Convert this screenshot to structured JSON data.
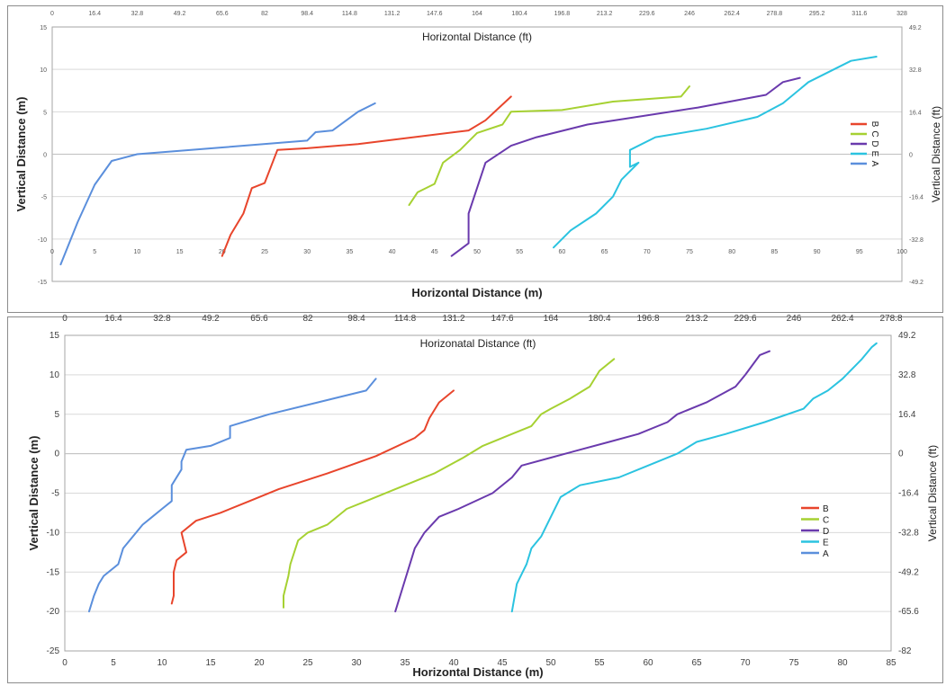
{
  "colors": {
    "B": "#e8452c",
    "C": "#a6d132",
    "D": "#6a3aad",
    "E": "#2bc3e0",
    "A": "#5b8fdc"
  },
  "chart_data": [
    {
      "type": "line",
      "title_top": "Horizontal Distance (ft)",
      "xlabel": "Horizontal Distance (m)",
      "ylabel_left": "Vertical Distance (m)",
      "ylabel_right": "Vertical Distance (ft)",
      "xlim": [
        0,
        100
      ],
      "ylim": [
        -15,
        15
      ],
      "x_ticks": [
        "0",
        "5",
        "10",
        "15",
        "20",
        "25",
        "30",
        "35",
        "40",
        "45",
        "50",
        "55",
        "60",
        "65",
        "70",
        "75",
        "80",
        "85",
        "90",
        "95",
        "100"
      ],
      "x_ticks_ft": [
        "0",
        "16.4",
        "32.8",
        "49.2",
        "65.6",
        "82",
        "98.4",
        "114.8",
        "131.2",
        "147.6",
        "164",
        "180.4",
        "196.8",
        "213.2",
        "229.6",
        "246",
        "262.4",
        "278.8",
        "295.2",
        "311.6",
        "328"
      ],
      "y_ticks": [
        "15",
        "10",
        "5",
        "0",
        "-5",
        "-10",
        "-15"
      ],
      "y_ticks_ft": [
        "49.2",
        "32.8",
        "16.4",
        "0",
        "-16.4",
        "-32.8",
        "-49.2"
      ],
      "legend_rotated": true,
      "series": [
        {
          "name": "B",
          "color_key": "B",
          "points": [
            [
              20,
              -12
            ],
            [
              21,
              -9.5
            ],
            [
              22.5,
              -7
            ],
            [
              23.5,
              -4
            ],
            [
              25,
              -3.4
            ],
            [
              26.5,
              0.5
            ],
            [
              30,
              0.7
            ],
            [
              36,
              1.2
            ],
            [
              49,
              2.8
            ],
            [
              51,
              4
            ],
            [
              54,
              6.8
            ]
          ]
        },
        {
          "name": "C",
          "color_key": "C",
          "points": [
            [
              42,
              -6
            ],
            [
              43,
              -4.5
            ],
            [
              45,
              -3.5
            ],
            [
              46,
              -1
            ],
            [
              48,
              0.5
            ],
            [
              50,
              2.5
            ],
            [
              53,
              3.5
            ],
            [
              54,
              5
            ],
            [
              60,
              5.2
            ],
            [
              66,
              6.2
            ],
            [
              74,
              6.8
            ],
            [
              75,
              8
            ]
          ]
        },
        {
          "name": "D",
          "color_key": "D",
          "points": [
            [
              47,
              -12
            ],
            [
              49,
              -10.5
            ],
            [
              49,
              -7
            ],
            [
              50,
              -4
            ],
            [
              51,
              -1
            ],
            [
              54,
              1
            ],
            [
              57,
              2
            ],
            [
              63,
              3.5
            ],
            [
              76,
              5.5
            ],
            [
              84,
              7
            ],
            [
              86,
              8.5
            ],
            [
              88,
              9
            ]
          ]
        },
        {
          "name": "E",
          "color_key": "E",
          "points": [
            [
              59,
              -11
            ],
            [
              61,
              -9
            ],
            [
              64,
              -7
            ],
            [
              66,
              -5
            ],
            [
              67,
              -3
            ],
            [
              69,
              -1
            ],
            [
              68,
              -1.5
            ],
            [
              68,
              0.5
            ],
            [
              71,
              2
            ],
            [
              77,
              3
            ],
            [
              83,
              4.4
            ],
            [
              86,
              6
            ],
            [
              89,
              8.5
            ],
            [
              94,
              11
            ],
            [
              97,
              11.5
            ]
          ]
        },
        {
          "name": "A",
          "color_key": "A",
          "points": [
            [
              1,
              -13
            ],
            [
              3,
              -8
            ],
            [
              5,
              -3.6
            ],
            [
              7,
              -0.8
            ],
            [
              10,
              0
            ],
            [
              20,
              0.8
            ],
            [
              30,
              1.6
            ],
            [
              31,
              2.6
            ],
            [
              33,
              2.8
            ],
            [
              36,
              5
            ],
            [
              38,
              6
            ]
          ]
        }
      ],
      "legend": [
        "B",
        "C",
        "D",
        "E",
        "A"
      ]
    },
    {
      "type": "line",
      "title_top": "Horizonatal Distance (ft)",
      "xlabel": "Horizontal Distance (m)",
      "ylabel_left": "Vertical Distance (m)",
      "ylabel_right": "Vertical Distance (ft)",
      "xlim": [
        0,
        85
      ],
      "ylim": [
        -25,
        15
      ],
      "x_ticks": [
        "0",
        "5",
        "10",
        "15",
        "20",
        "25",
        "30",
        "35",
        "40",
        "45",
        "50",
        "55",
        "60",
        "65",
        "70",
        "75",
        "80",
        "85"
      ],
      "x_ticks_ft": [
        "0",
        "16.4",
        "32.8",
        "49.2",
        "65.6",
        "82",
        "98.4",
        "114.8",
        "131.2",
        "147.6",
        "164",
        "180.4",
        "196.8",
        "213.2",
        "229.6",
        "246",
        "262.4",
        "278.8"
      ],
      "y_ticks": [
        "15",
        "10",
        "5",
        "0",
        "-5",
        "-10",
        "-15",
        "-20",
        "-25"
      ],
      "y_ticks_ft": [
        "49.2",
        "32.8",
        "16.4",
        "0",
        "-16.4",
        "-32.8",
        "-49.2",
        "-65.6",
        "-82"
      ],
      "legend_rotated": false,
      "series": [
        {
          "name": "B",
          "color_key": "B",
          "points": [
            [
              11,
              -19
            ],
            [
              11.2,
              -18
            ],
            [
              11.2,
              -15
            ],
            [
              11.5,
              -13.5
            ],
            [
              12.5,
              -12.5
            ],
            [
              12,
              -10
            ],
            [
              13.5,
              -8.5
            ],
            [
              16,
              -7.5
            ],
            [
              19,
              -6
            ],
            [
              22,
              -4.5
            ],
            [
              27,
              -2.5
            ],
            [
              32,
              -0.3
            ],
            [
              36,
              2
            ],
            [
              37,
              3
            ],
            [
              37.5,
              4.5
            ],
            [
              38.5,
              6.5
            ],
            [
              40,
              8
            ]
          ]
        },
        {
          "name": "C",
          "color_key": "C",
          "points": [
            [
              22.5,
              -19.5
            ],
            [
              22.5,
              -18
            ],
            [
              23,
              -15.5
            ],
            [
              23.2,
              -14
            ],
            [
              24,
              -11
            ],
            [
              25,
              -10
            ],
            [
              27,
              -9
            ],
            [
              29,
              -7
            ],
            [
              31,
              -6
            ],
            [
              34,
              -4.5
            ],
            [
              38,
              -2.5
            ],
            [
              41,
              -0.5
            ],
            [
              43,
              1
            ],
            [
              46,
              2.5
            ],
            [
              48,
              3.5
            ],
            [
              49,
              5
            ],
            [
              50,
              5.7
            ],
            [
              52,
              7
            ],
            [
              54,
              8.5
            ],
            [
              55,
              10.5
            ],
            [
              56.5,
              12
            ]
          ]
        },
        {
          "name": "D",
          "color_key": "D",
          "points": [
            [
              34,
              -20
            ],
            [
              35,
              -16
            ],
            [
              36,
              -12
            ],
            [
              37,
              -10
            ],
            [
              38.5,
              -8
            ],
            [
              40.5,
              -7
            ],
            [
              44,
              -5
            ],
            [
              46,
              -3
            ],
            [
              47,
              -1.5
            ],
            [
              50,
              -0.5
            ],
            [
              53,
              0.5
            ],
            [
              56,
              1.5
            ],
            [
              59,
              2.5
            ],
            [
              62,
              4
            ],
            [
              63,
              5
            ],
            [
              66,
              6.5
            ],
            [
              69,
              8.5
            ],
            [
              70,
              10
            ],
            [
              71.5,
              12.5
            ],
            [
              72.5,
              13
            ]
          ]
        },
        {
          "name": "E",
          "color_key": "E",
          "points": [
            [
              46,
              -20
            ],
            [
              46.5,
              -16.5
            ],
            [
              47.5,
              -14
            ],
            [
              48,
              -12
            ],
            [
              49,
              -10.5
            ],
            [
              50,
              -8
            ],
            [
              51,
              -5.5
            ],
            [
              53,
              -4
            ],
            [
              57,
              -3
            ],
            [
              60,
              -1.5
            ],
            [
              63,
              0
            ],
            [
              65,
              1.5
            ],
            [
              68,
              2.5
            ],
            [
              72,
              4
            ],
            [
              76,
              5.7
            ],
            [
              77,
              7
            ],
            [
              78.5,
              8
            ],
            [
              80,
              9.5
            ],
            [
              82,
              12
            ],
            [
              83,
              13.5
            ],
            [
              83.5,
              14
            ]
          ]
        },
        {
          "name": "A",
          "color_key": "A",
          "points": [
            [
              2.5,
              -20
            ],
            [
              3,
              -18
            ],
            [
              3.5,
              -16.5
            ],
            [
              4,
              -15.5
            ],
            [
              5.5,
              -14
            ],
            [
              6,
              -12
            ],
            [
              7,
              -10.5
            ],
            [
              8,
              -9
            ],
            [
              9,
              -8
            ],
            [
              10,
              -7
            ],
            [
              11,
              -6
            ],
            [
              11,
              -4
            ],
            [
              12,
              -2
            ],
            [
              12,
              -1
            ],
            [
              12.5,
              0.5
            ],
            [
              15,
              1
            ],
            [
              17,
              2
            ],
            [
              17,
              3.5
            ],
            [
              21,
              5
            ],
            [
              26,
              6.5
            ],
            [
              31,
              8
            ],
            [
              32,
              9.5
            ]
          ]
        }
      ],
      "legend": [
        "B",
        "C",
        "D",
        "E",
        "A"
      ]
    }
  ]
}
